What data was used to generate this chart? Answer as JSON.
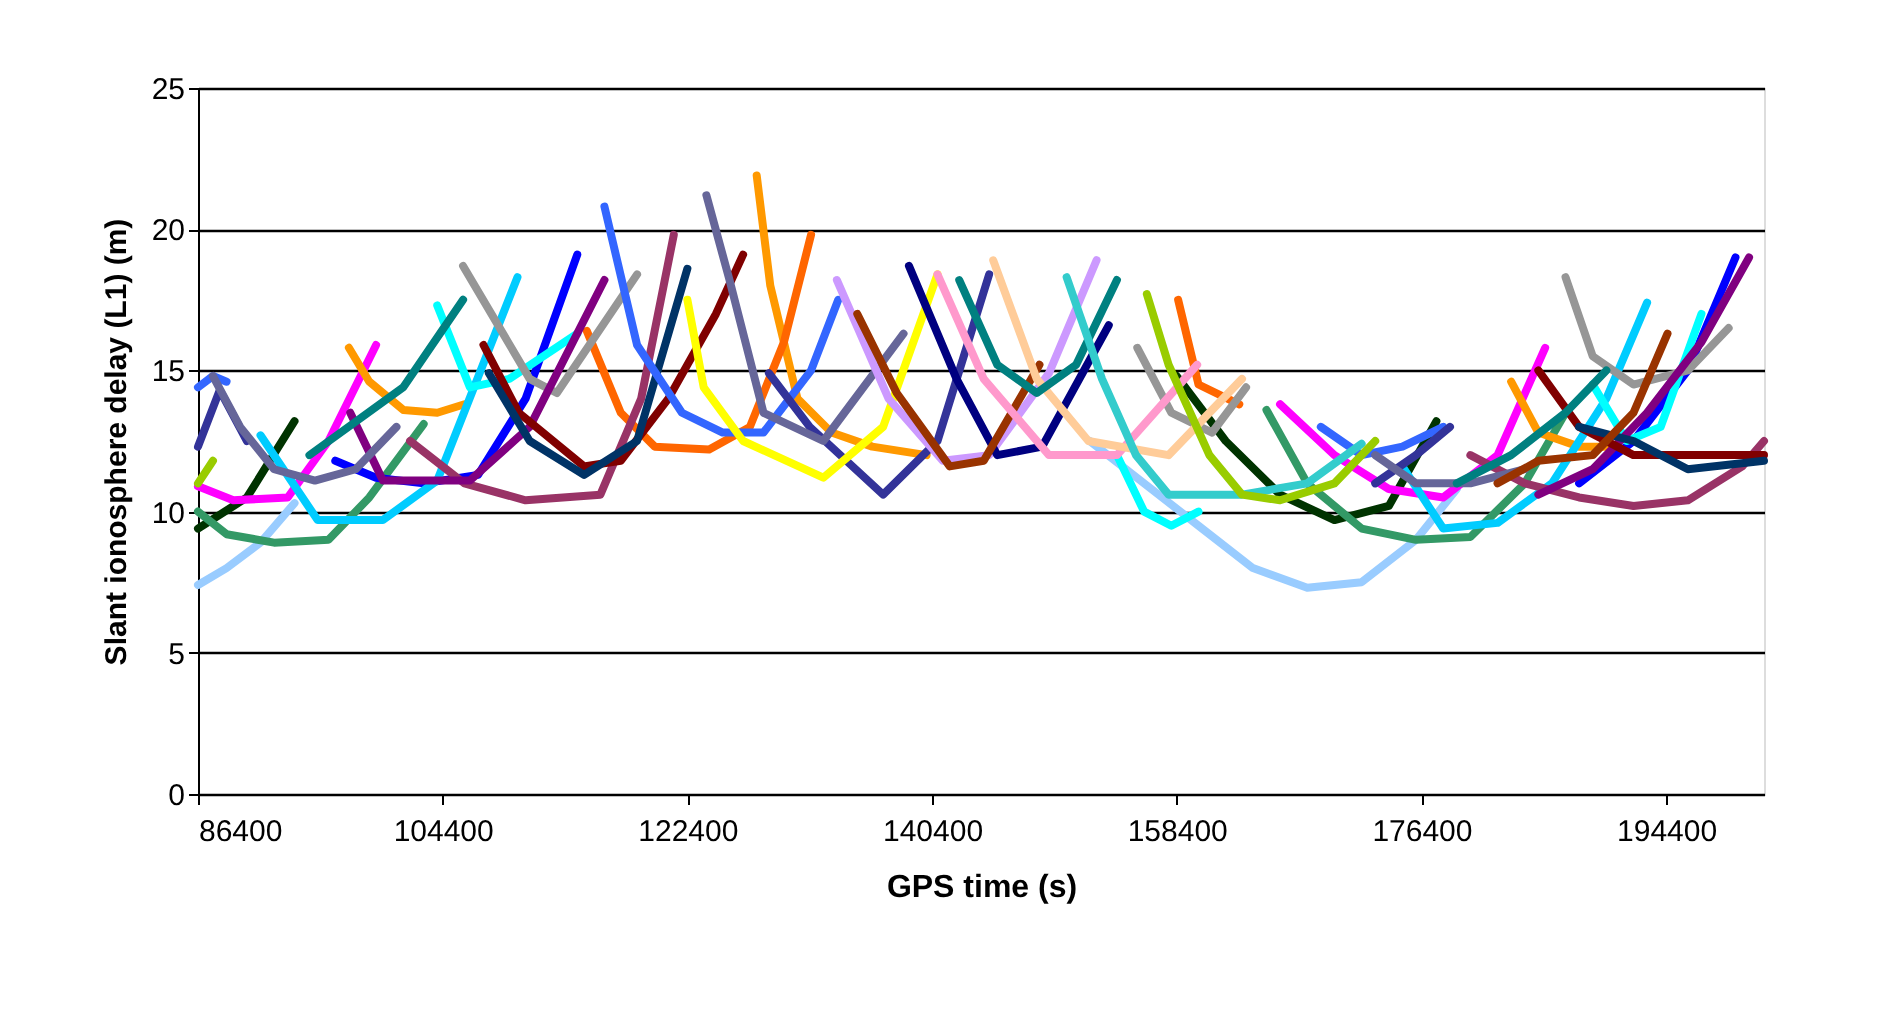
{
  "chart_data": {
    "type": "line",
    "xlabel": "GPS time (s)",
    "ylabel": "Slant ionosphere delay (L1) (m)",
    "xlim": [
      86400,
      201600
    ],
    "ylim": [
      0,
      25
    ],
    "xticks": [
      86400,
      104400,
      122400,
      140400,
      158400,
      176400,
      194400
    ],
    "yticks": [
      0,
      5,
      10,
      15,
      20,
      25
    ],
    "grid": "y",
    "legend": false,
    "marker": "none",
    "line_style": "solid",
    "series": [
      {
        "color": "#99ccff",
        "x": [
          86400,
          88500,
          91000,
          93500
        ],
        "values": [
          7.4,
          8.0,
          8.9,
          10.3
        ]
      },
      {
        "color": "#99ccff",
        "x": [
          152000,
          156000,
          160000,
          164000,
          168000,
          172000,
          176000,
          179000
        ],
        "values": [
          12.5,
          11,
          9.5,
          8,
          7.3,
          7.5,
          9,
          10.8
        ]
      },
      {
        "color": "#003300",
        "x": [
          86400,
          90000,
          93500
        ],
        "values": [
          9.4,
          10.5,
          13.2
        ]
      },
      {
        "color": "#003300",
        "x": [
          158400,
          162000,
          166000,
          170000,
          174000,
          177500
        ],
        "values": [
          14.8,
          12.5,
          10.6,
          9.7,
          10.2,
          13.2
        ]
      },
      {
        "color": "#339966",
        "x": [
          86400,
          88500,
          92000,
          96000,
          99000,
          103000
        ],
        "values": [
          10,
          9.2,
          8.9,
          9.0,
          10.5,
          13.1
        ]
      },
      {
        "color": "#339966",
        "x": [
          165000,
          168000,
          172000,
          176000,
          180000,
          184000,
          187000
        ],
        "values": [
          13.6,
          11,
          9.4,
          9.0,
          9.1,
          11,
          13.5
        ]
      },
      {
        "color": "#ff00ff",
        "x": [
          86400,
          89000,
          93000,
          96000,
          99500
        ],
        "values": [
          10.9,
          10.4,
          10.5,
          12.5,
          15.9
        ]
      },
      {
        "color": "#ff00ff",
        "x": [
          166000,
          170000,
          174000,
          178000,
          182000,
          185500
        ],
        "values": [
          13.8,
          12,
          10.8,
          10.5,
          12,
          15.8
        ]
      },
      {
        "color": "#ff9900",
        "x": [
          97500,
          99000,
          101500,
          104000,
          106000
        ],
        "values": [
          15.8,
          14.6,
          13.6,
          13.5,
          13.8
        ]
      },
      {
        "color": "#ff9900",
        "x": [
          127500,
          128500,
          130500,
          133000,
          136000,
          140000
        ],
        "values": [
          21.9,
          18,
          14,
          12.8,
          12.3,
          12
        ]
      },
      {
        "color": "#ff9900",
        "x": [
          183000,
          185000,
          188000,
          190000
        ],
        "values": [
          14.6,
          12.8,
          12.3,
          12.3
        ]
      },
      {
        "color": "#ff6600",
        "x": [
          115000,
          117500,
          120000,
          124000,
          127000,
          129500,
          131500
        ],
        "values": [
          16.4,
          13.5,
          12.3,
          12.2,
          13,
          16,
          19.8
        ]
      },
      {
        "color": "#ff6600",
        "x": [
          158500,
          160000,
          163000
        ],
        "values": [
          17.5,
          14.5,
          13.8
        ]
      },
      {
        "color": "#0000ff",
        "x": [
          96500,
          99500,
          103000,
          107000,
          110500,
          114300
        ],
        "values": [
          11.8,
          11.2,
          11.0,
          11.3,
          14,
          19.1
        ]
      },
      {
        "color": "#0000ff",
        "x": [
          188000,
          192000,
          196000,
          199500
        ],
        "values": [
          11,
          12.5,
          15,
          19
        ]
      },
      {
        "color": "#00ccff",
        "x": [
          91000,
          95200,
          100000,
          104000,
          109900
        ],
        "values": [
          12.7,
          9.7,
          9.7,
          11.1,
          18.3
        ]
      },
      {
        "color": "#00ccff",
        "x": [
          175000,
          178000,
          182000,
          186000,
          190000,
          193000
        ],
        "values": [
          11.6,
          9.4,
          9.6,
          11,
          14,
          17.4
        ]
      },
      {
        "color": "#00ffff",
        "x": [
          104000,
          106400,
          109300,
          114300
        ],
        "values": [
          17.3,
          14.4,
          14.7,
          16.3
        ]
      },
      {
        "color": "#00ffff",
        "x": [
          154000,
          156000,
          158000,
          160000
        ],
        "values": [
          12,
          10,
          9.5,
          10
        ]
      },
      {
        "color": "#00ffff",
        "x": [
          189000,
          191500,
          194000,
          197000
        ],
        "values": [
          14.5,
          12.5,
          13,
          17
        ]
      },
      {
        "color": "#969696",
        "x": [
          105900,
          110800,
          112800,
          118700
        ],
        "values": [
          18.7,
          14.7,
          14.2,
          18.4
        ]
      },
      {
        "color": "#969696",
        "x": [
          155500,
          158000,
          161000,
          163500
        ],
        "values": [
          15.8,
          13.5,
          12.8,
          14.4
        ]
      },
      {
        "color": "#969696",
        "x": [
          187000,
          189000,
          192000,
          196000,
          199000
        ],
        "values": [
          18.3,
          15.5,
          14.5,
          15,
          16.5
        ]
      },
      {
        "color": "#993366",
        "x": [
          102000,
          106000,
          110500,
          116000,
          119000,
          121400
        ],
        "values": [
          12.5,
          11,
          10.4,
          10.6,
          14,
          19.8
        ]
      },
      {
        "color": "#993366",
        "x": [
          180000,
          184000,
          188000,
          192000,
          196000,
          200000,
          201600
        ],
        "values": [
          12,
          11,
          10.5,
          10.2,
          10.4,
          11.6,
          12.5
        ]
      },
      {
        "color": "#800080",
        "x": [
          97600,
          100000,
          106400,
          110800,
          116300
        ],
        "values": [
          13.5,
          11.1,
          11.1,
          13.0,
          18.2
        ]
      },
      {
        "color": "#800080",
        "x": [
          185000,
          189000,
          193000,
          197000,
          200500
        ],
        "values": [
          10.6,
          11.5,
          13.5,
          16,
          19
        ]
      },
      {
        "color": "#800000",
        "x": [
          107400,
          110000,
          114800,
          117500,
          121000,
          124500,
          126500
        ],
        "values": [
          15.9,
          13.5,
          11.6,
          11.8,
          14,
          17,
          19.1
        ]
      },
      {
        "color": "#800000",
        "x": [
          185000,
          188000,
          192000,
          196000,
          201600
        ],
        "values": [
          15,
          13,
          12,
          12,
          12
        ]
      },
      {
        "color": "#003366",
        "x": [
          107800,
          110800,
          114800,
          118700,
          122400
        ],
        "values": [
          14.9,
          12.5,
          11.3,
          12.5,
          18.6
        ]
      },
      {
        "color": "#003366",
        "x": [
          188000,
          192000,
          196000,
          201600
        ],
        "values": [
          13,
          12.5,
          11.5,
          11.8
        ]
      },
      {
        "color": "#3366ff",
        "x": [
          86400,
          87500,
          88500
        ],
        "values": [
          14.4,
          14.8,
          14.6
        ]
      },
      {
        "color": "#3366ff",
        "x": [
          116300,
          118700,
          122000,
          125000,
          128000,
          131500,
          133500
        ],
        "values": [
          20.8,
          15.9,
          13.5,
          12.8,
          12.8,
          15,
          17.5
        ]
      },
      {
        "color": "#3366ff",
        "x": [
          169000,
          172000,
          175000,
          178000
        ],
        "values": [
          13,
          12,
          12.3,
          13
        ]
      },
      {
        "color": "#333399",
        "x": [
          86400,
          88000,
          90000
        ],
        "values": [
          12.3,
          14.3,
          12.5
        ]
      },
      {
        "color": "#333399",
        "x": [
          128400,
          131400,
          136800,
          140800,
          144600
        ],
        "values": [
          14.9,
          13.0,
          10.6,
          12.5,
          18.4
        ]
      },
      {
        "color": "#333399",
        "x": [
          173000,
          176000,
          178500
        ],
        "values": [
          11,
          12,
          13
        ]
      },
      {
        "color": "#666699",
        "x": [
          87500,
          89500,
          92000,
          95000,
          98000,
          101000
        ],
        "values": [
          14.8,
          13,
          11.5,
          11.1,
          11.5,
          13
        ]
      },
      {
        "color": "#666699",
        "x": [
          123800,
          125500,
          128000,
          132400,
          138300
        ],
        "values": [
          21.2,
          18.2,
          13.5,
          12.5,
          16.3
        ]
      },
      {
        "color": "#666699",
        "x": [
          173000,
          176000,
          180000,
          184000
        ],
        "values": [
          12,
          11,
          11,
          11.5
        ]
      },
      {
        "color": "#ffff00",
        "x": [
          122400,
          123600,
          126500,
          132400,
          136800,
          140800
        ],
        "values": [
          17.5,
          14.4,
          12.5,
          11.2,
          13.0,
          18.4
        ]
      },
      {
        "color": "#cc99ff",
        "x": [
          133400,
          137200,
          141200,
          144600,
          149000,
          152500
        ],
        "values": [
          18.2,
          14,
          11.8,
          12.0,
          14.9,
          18.9
        ]
      },
      {
        "color": "#000080",
        "x": [
          138700,
          142200,
          145200,
          148500,
          153400
        ],
        "values": [
          18.7,
          14.7,
          12.0,
          12.3,
          16.6
        ]
      },
      {
        "color": "#993300",
        "x": [
          134900,
          137800,
          141700,
          144200,
          148300
        ],
        "values": [
          17.0,
          14.2,
          11.6,
          11.8,
          15.2
        ]
      },
      {
        "color": "#993300",
        "x": [
          182000,
          185000,
          189000,
          192000,
          194500
        ],
        "values": [
          11,
          11.8,
          12,
          13.5,
          16.3
        ]
      },
      {
        "color": "#ff99cc",
        "x": [
          140800,
          144200,
          149000,
          154000,
          159900
        ],
        "values": [
          18.4,
          14.7,
          12.0,
          12.0,
          15.2
        ]
      },
      {
        "color": "#ffcc99",
        "x": [
          144900,
          148100,
          151900,
          157800,
          163200
        ],
        "values": [
          18.9,
          14.7,
          12.5,
          12.0,
          14.7
        ]
      },
      {
        "color": "#008080",
        "x": [
          94600,
          101500,
          105900
        ],
        "values": [
          12.0,
          14.4,
          17.5
        ]
      },
      {
        "color": "#008080",
        "x": [
          142400,
          145200,
          148100,
          151000,
          154000
        ],
        "values": [
          18.2,
          15.2,
          14.2,
          15.2,
          18.2
        ]
      },
      {
        "color": "#008080",
        "x": [
          179000,
          183000,
          187000,
          190000
        ],
        "values": [
          11,
          12,
          13.5,
          15
        ]
      },
      {
        "color": "#33cccc",
        "x": [
          150300,
          152900,
          155400,
          157800,
          163200,
          168000,
          172000
        ],
        "values": [
          18.3,
          14.7,
          12.0,
          10.6,
          10.6,
          11,
          12.4
        ]
      },
      {
        "color": "#99cc00",
        "x": [
          156200,
          157800,
          160800,
          163200,
          166000,
          170000,
          173000
        ],
        "values": [
          17.7,
          15.2,
          12.0,
          10.6,
          10.4,
          11,
          12.5
        ]
      },
      {
        "color": "#99cc00",
        "x": [
          86400,
          87500
        ],
        "values": [
          11,
          11.8
        ]
      }
    ]
  }
}
